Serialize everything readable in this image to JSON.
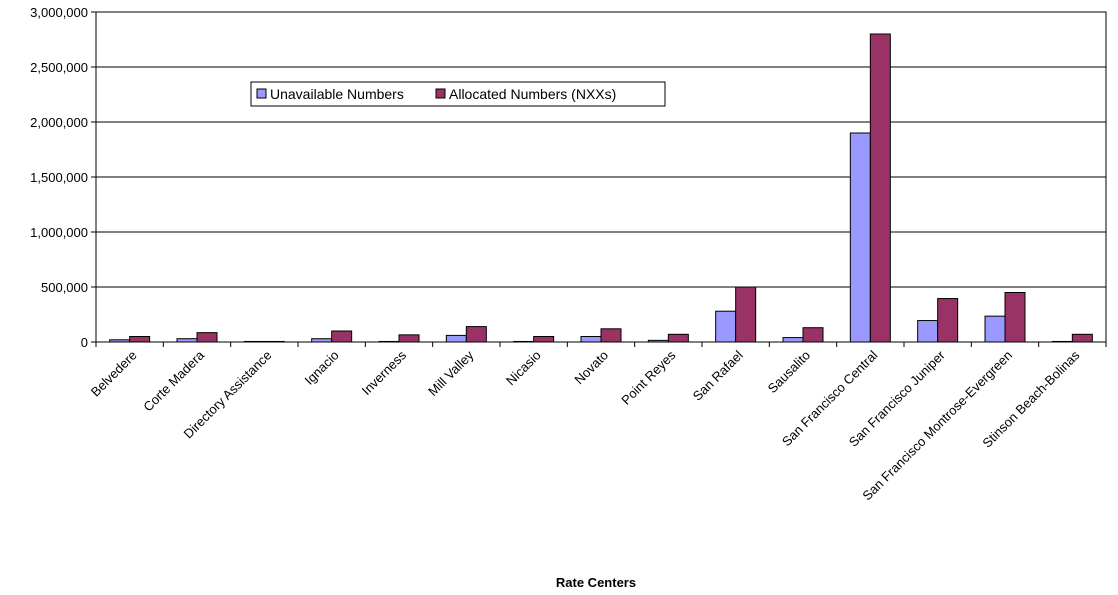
{
  "chart_data": {
    "type": "bar",
    "xlabel": "Rate Centers",
    "ylabel": "",
    "ylim": [
      0,
      3000000
    ],
    "yticks": [
      0,
      500000,
      1000000,
      1500000,
      2000000,
      2500000,
      3000000
    ],
    "ytick_labels": [
      "0",
      "500,000",
      "1,000,000",
      "1,500,000",
      "2,000,000",
      "2,500,000",
      "3,000,000"
    ],
    "grid": "horizontal",
    "legend_position": "top-left",
    "categories": [
      "Belvedere",
      "Corte Madera",
      "Directory Assistance",
      "Ignacio",
      "Inverness",
      "Mill Valley",
      "Nicasio",
      "Novato",
      "Point Reyes",
      "San Rafael",
      "Sausalito",
      "San Francisco Central",
      "San Francisco Juniper",
      "San Francisco Montrose-Evergreen",
      "Stinson Beach-Bolinas"
    ],
    "series": [
      {
        "name": "Unavailable Numbers",
        "color": "#9999ff",
        "values": [
          20000,
          30000,
          5000,
          30000,
          5000,
          60000,
          5000,
          50000,
          15000,
          280000,
          40000,
          1900000,
          195000,
          235000,
          5000
        ]
      },
      {
        "name": "Allocated Numbers (NXXs)",
        "color": "#993366",
        "values": [
          50000,
          85000,
          5000,
          100000,
          65000,
          140000,
          50000,
          120000,
          70000,
          500000,
          130000,
          2800000,
          395000,
          450000,
          70000
        ]
      }
    ]
  }
}
